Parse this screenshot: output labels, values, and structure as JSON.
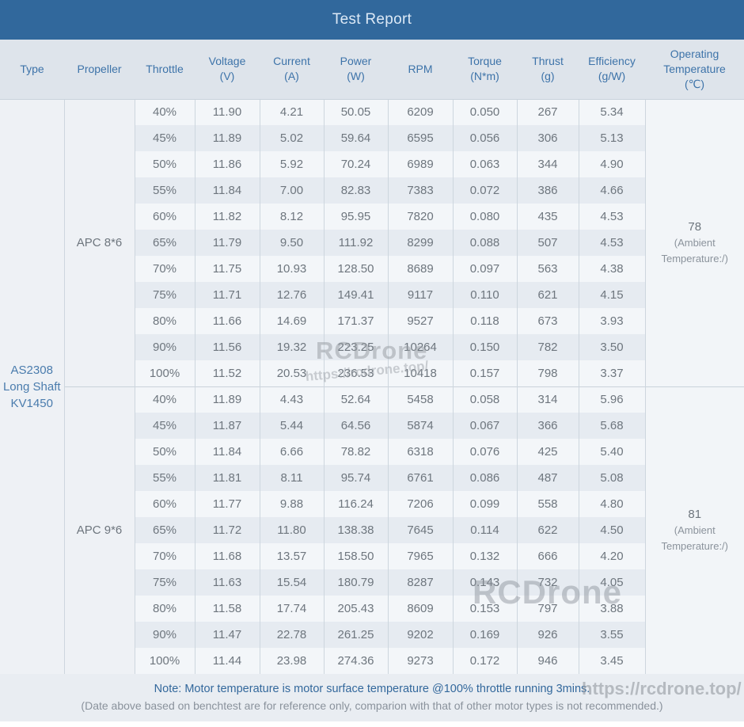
{
  "title": "Test Report",
  "columns": [
    {
      "name": "Type",
      "unit": ""
    },
    {
      "name": "Propeller",
      "unit": ""
    },
    {
      "name": "Throttle",
      "unit": ""
    },
    {
      "name": "Voltage",
      "unit": "(V)"
    },
    {
      "name": "Current",
      "unit": "(A)"
    },
    {
      "name": "Power",
      "unit": "(W)"
    },
    {
      "name": "RPM",
      "unit": ""
    },
    {
      "name": "Torque",
      "unit": "(N*m)"
    },
    {
      "name": "Thrust",
      "unit": "(g)"
    },
    {
      "name": "Efficiency",
      "unit": "(g/W)"
    },
    {
      "name": "Operating Temperature",
      "unit": "(℃)"
    }
  ],
  "motor_type": {
    "lines": [
      "AS2308",
      "Long Shaft",
      "KV1450"
    ]
  },
  "groups": [
    {
      "propeller": "APC 8*6",
      "operating_temperature": {
        "value": "78",
        "note_lines": [
          "(Ambient",
          "Temperature:/)"
        ]
      },
      "rows": [
        [
          "40%",
          "11.90",
          "4.21",
          "50.05",
          "6209",
          "0.050",
          "267",
          "5.34"
        ],
        [
          "45%",
          "11.89",
          "5.02",
          "59.64",
          "6595",
          "0.056",
          "306",
          "5.13"
        ],
        [
          "50%",
          "11.86",
          "5.92",
          "70.24",
          "6989",
          "0.063",
          "344",
          "4.90"
        ],
        [
          "55%",
          "11.84",
          "7.00",
          "82.83",
          "7383",
          "0.072",
          "386",
          "4.66"
        ],
        [
          "60%",
          "11.82",
          "8.12",
          "95.95",
          "7820",
          "0.080",
          "435",
          "4.53"
        ],
        [
          "65%",
          "11.79",
          "9.50",
          "111.92",
          "8299",
          "0.088",
          "507",
          "4.53"
        ],
        [
          "70%",
          "11.75",
          "10.93",
          "128.50",
          "8689",
          "0.097",
          "563",
          "4.38"
        ],
        [
          "75%",
          "11.71",
          "12.76",
          "149.41",
          "9117",
          "0.110",
          "621",
          "4.15"
        ],
        [
          "80%",
          "11.66",
          "14.69",
          "171.37",
          "9527",
          "0.118",
          "673",
          "3.93"
        ],
        [
          "90%",
          "11.56",
          "19.32",
          "223.25",
          "10264",
          "0.150",
          "782",
          "3.50"
        ],
        [
          "100%",
          "11.52",
          "20.53",
          "236.53",
          "10418",
          "0.157",
          "798",
          "3.37"
        ]
      ]
    },
    {
      "propeller": "APC 9*6",
      "operating_temperature": {
        "value": "81",
        "note_lines": [
          "(Ambient",
          "Temperature:/)"
        ]
      },
      "rows": [
        [
          "40%",
          "11.89",
          "4.43",
          "52.64",
          "5458",
          "0.058",
          "314",
          "5.96"
        ],
        [
          "45%",
          "11.87",
          "5.44",
          "64.56",
          "5874",
          "0.067",
          "366",
          "5.68"
        ],
        [
          "50%",
          "11.84",
          "6.66",
          "78.82",
          "6318",
          "0.076",
          "425",
          "5.40"
        ],
        [
          "55%",
          "11.81",
          "8.11",
          "95.74",
          "6761",
          "0.086",
          "487",
          "5.08"
        ],
        [
          "60%",
          "11.77",
          "9.88",
          "116.24",
          "7206",
          "0.099",
          "558",
          "4.80"
        ],
        [
          "65%",
          "11.72",
          "11.80",
          "138.38",
          "7645",
          "0.114",
          "622",
          "4.50"
        ],
        [
          "70%",
          "11.68",
          "13.57",
          "158.50",
          "7965",
          "0.132",
          "666",
          "4.20"
        ],
        [
          "75%",
          "11.63",
          "15.54",
          "180.79",
          "8287",
          "0.143",
          "732",
          "4.05"
        ],
        [
          "80%",
          "11.58",
          "17.74",
          "205.43",
          "8609",
          "0.153",
          "797",
          "3.88"
        ],
        [
          "90%",
          "11.47",
          "22.78",
          "261.25",
          "9202",
          "0.169",
          "926",
          "3.55"
        ],
        [
          "100%",
          "11.44",
          "23.98",
          "274.36",
          "9273",
          "0.172",
          "946",
          "3.45"
        ]
      ]
    }
  ],
  "notes": {
    "line1": "Note: Motor temperature is motor surface temperature @100% throttle running 3mins.",
    "line2": "(Date above based on benchtest are for reference only, comparion with that of other motor types is not recommended.)"
  },
  "watermarks": {
    "brand": "RCDrone",
    "url": "https://rcdrone.top/"
  },
  "colors": {
    "title_bar": "#31689c",
    "header_bg": "#dee4eb",
    "header_text": "#3d73a9",
    "row_light": "#f3f6f9",
    "row_dark": "#e6ebf1",
    "merged_cell_bg": "#eef1f5",
    "cell_text": "#6e767e",
    "type_text": "#4a7cad",
    "note_blue": "#33689c",
    "note_gray": "#8a929c"
  }
}
